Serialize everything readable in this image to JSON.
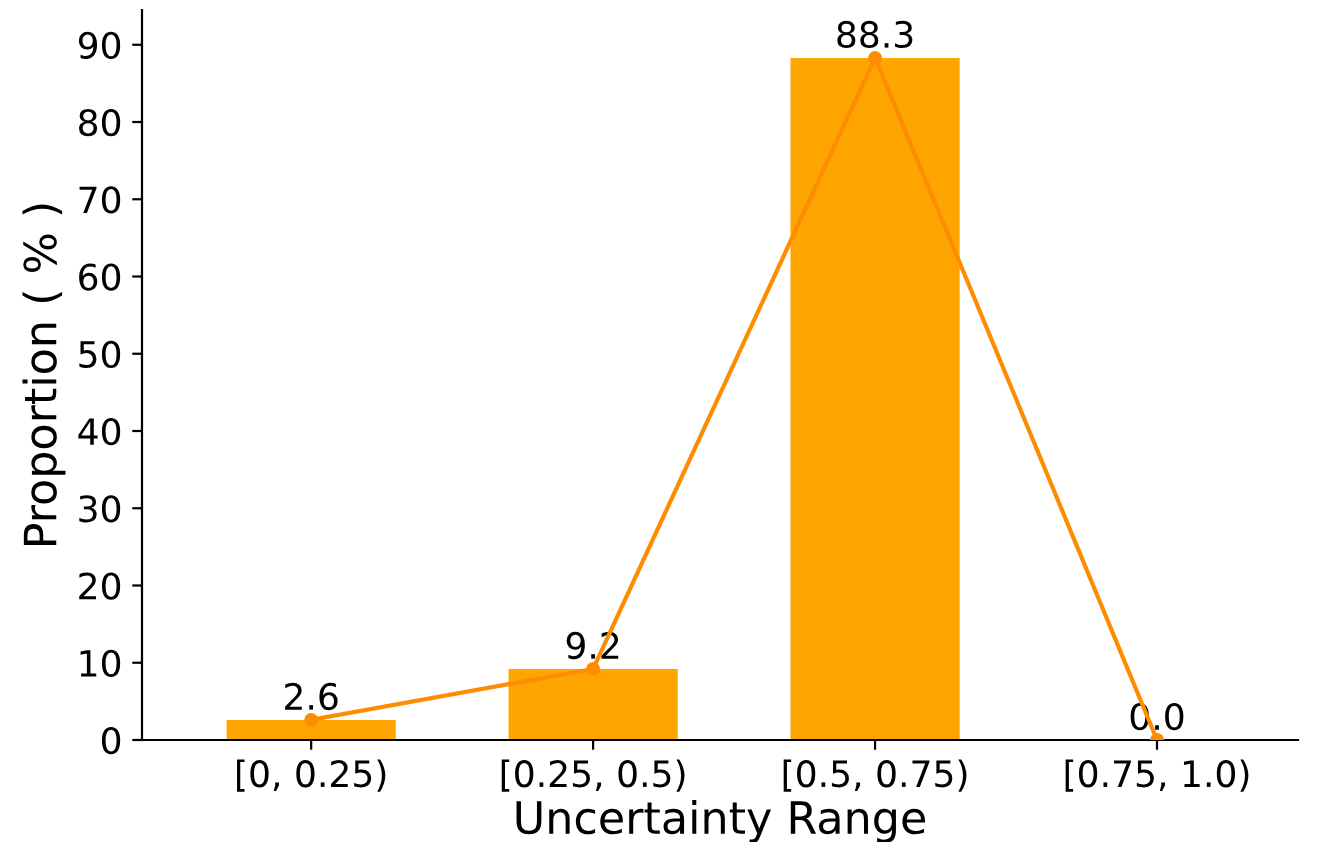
{
  "chart_data": {
    "type": "bar",
    "xlabel": "Uncertainty Range",
    "ylabel": "Proportion ( % )",
    "categories": [
      "[0, 0.25)",
      "[0.25, 0.5)",
      "[0.5, 0.75)",
      "[0.75, 1.0)"
    ],
    "series": [
      {
        "color": "#ffa500",
        "values": [
          2.6,
          9.2,
          88.3,
          0.0
        ],
        "value_labels": [
          "2.6",
          "9.2",
          "88.3",
          "0.0"
        ]
      },
      {
        "type": "line",
        "color": "#ff8c00",
        "values": [
          2.6,
          9.2,
          88.3,
          0.0
        ],
        "marker": "circle",
        "line_style": "solid"
      }
    ],
    "ylim": [
      0,
      94.5
    ],
    "yticks": [
      0,
      10,
      20,
      30,
      40,
      50,
      60,
      70,
      80,
      90
    ],
    "grid": false
  }
}
